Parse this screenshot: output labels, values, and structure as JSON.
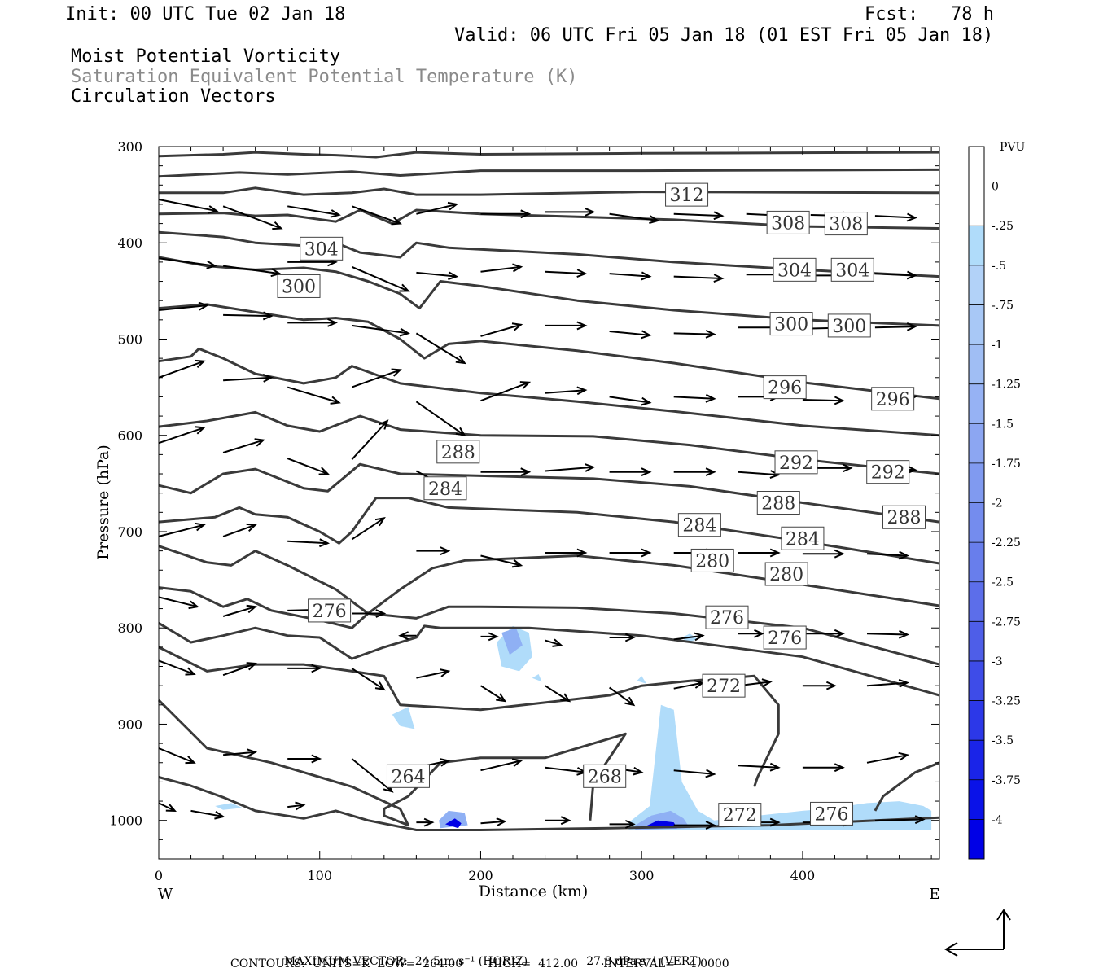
{
  "header": {
    "init": "Init: 00 UTC Tue 02 Jan 18",
    "fcst": "Fcst:   78 h",
    "valid": "Valid: 06 UTC Fri 05 Jan 18 (01 EST Fri 05 Jan 18)",
    "field1": "Moist Potential Vorticity",
    "field2": "Saturation Equivalent Potential Temperature (K)",
    "field3": "Circulation Vectors"
  },
  "footer": {
    "max_vector_label": "MAXIMUM VECTOR:",
    "horiz": "24.5 m s⁻¹ (HORIZ)",
    "vert": "27.8 dPa s⁻¹ (VERT)",
    "contours": "CONTOURS:  UNITS=K  LOW=  264.00       HIGH=  412.00       INTERVAL=    4.0000"
  },
  "colors": {
    "contour": "#3a3a3a",
    "shade_light": "#b0dcfa",
    "shade_mid": "#8fb0f4",
    "shade_dark": "#0000e6"
  },
  "chart_data": {
    "type": "contour",
    "xlabel": "Distance (km)",
    "ylabel": "Pressure (hPa)",
    "xlim": [
      0,
      485
    ],
    "ylim": [
      1040,
      300
    ],
    "x_ticks": [
      0,
      100,
      200,
      300,
      400
    ],
    "y_ticks": [
      300,
      400,
      500,
      600,
      700,
      800,
      900,
      1000
    ],
    "x_end_labels": {
      "left": "W",
      "right": "E"
    },
    "colorbar": {
      "unit": "PVU",
      "labels": [
        "0",
        "-.25",
        "-.5",
        "-.75",
        "-1",
        "-1.25",
        "-1.5",
        "-1.75",
        "-2",
        "-2.25",
        "-2.5",
        "-2.75",
        "-3",
        "-3.25",
        "-3.5",
        "-3.75",
        "-4"
      ],
      "colors": [
        "#ffffff",
        "#ffffff",
        "#b0dcfa",
        "#b2d2f8",
        "#a8c8f6",
        "#a0bef4",
        "#96b2f4",
        "#8ca6f2",
        "#809af0",
        "#748cee",
        "#687eec",
        "#5c6eea",
        "#4e5ee8",
        "#3e4ce8",
        "#2c38e8",
        "#1a24e8",
        "#0a12e8",
        "#0000e6"
      ]
    },
    "contour_labels": [
      {
        "v": "312",
        "x": 328,
        "p": 350
      },
      {
        "v": "308",
        "x": 391,
        "p": 379
      },
      {
        "v": "308",
        "x": 427,
        "p": 380
      },
      {
        "v": "304",
        "x": 101,
        "p": 406
      },
      {
        "v": "304",
        "x": 395,
        "p": 428
      },
      {
        "v": "304",
        "x": 431,
        "p": 428
      },
      {
        "v": "300",
        "x": 87,
        "p": 445
      },
      {
        "v": "300",
        "x": 393,
        "p": 484
      },
      {
        "v": "300",
        "x": 429,
        "p": 486
      },
      {
        "v": "296",
        "x": 389,
        "p": 550
      },
      {
        "v": "296",
        "x": 456,
        "p": 562
      },
      {
        "v": "292",
        "x": 396,
        "p": 628
      },
      {
        "v": "292",
        "x": 453,
        "p": 638
      },
      {
        "v": "288",
        "x": 186,
        "p": 617
      },
      {
        "v": "288",
        "x": 385,
        "p": 670
      },
      {
        "v": "288",
        "x": 463,
        "p": 685
      },
      {
        "v": "284",
        "x": 178,
        "p": 655
      },
      {
        "v": "284",
        "x": 336,
        "p": 693
      },
      {
        "v": "284",
        "x": 400,
        "p": 707
      },
      {
        "v": "280",
        "x": 344,
        "p": 730
      },
      {
        "v": "280",
        "x": 390,
        "p": 744
      },
      {
        "v": "276",
        "x": 106,
        "p": 782
      },
      {
        "v": "276",
        "x": 353,
        "p": 789
      },
      {
        "v": "276",
        "x": 389,
        "p": 810
      },
      {
        "v": "272",
        "x": 351,
        "p": 860
      },
      {
        "v": "272",
        "x": 361,
        "p": 994
      },
      {
        "v": "276",
        "x": 418,
        "p": 993
      },
      {
        "v": "264",
        "x": 155,
        "p": 954
      },
      {
        "v": "268",
        "x": 277,
        "p": 954
      }
    ]
  }
}
